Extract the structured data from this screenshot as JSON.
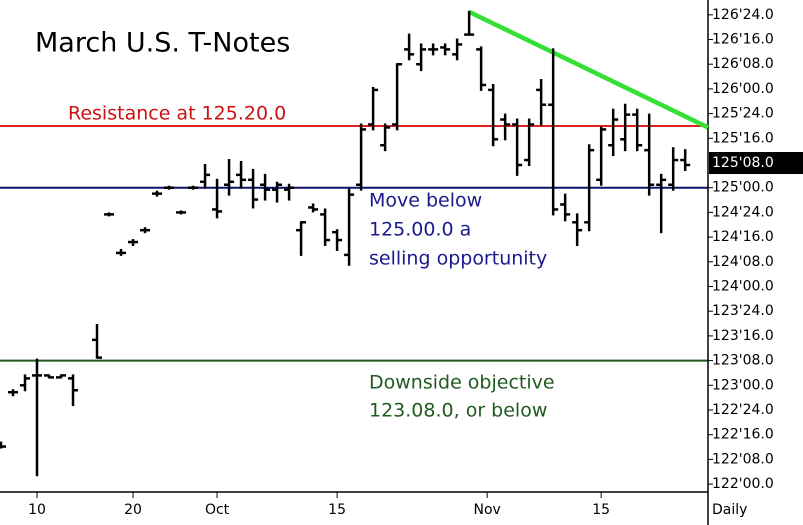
{
  "chart_data": {
    "type": "ohlc",
    "title": "March U.S. T-Notes",
    "period_label": "Daily",
    "color": "#000000",
    "x": [
      0,
      1,
      2,
      3,
      4,
      5,
      6,
      8,
      9,
      10,
      11,
      12,
      13,
      14,
      15,
      16,
      17,
      18,
      19,
      20,
      21,
      22,
      23,
      24,
      25,
      26,
      27,
      28,
      29,
      30,
      31,
      32,
      33,
      34,
      35,
      36,
      37,
      38,
      39,
      40,
      41,
      42,
      43,
      44,
      45,
      46,
      47,
      48,
      49,
      50,
      51,
      52,
      53,
      54,
      55,
      56,
      57
    ],
    "high": [
      122.42,
      122.95,
      123.1,
      123.26,
      123.1,
      123.1,
      123.1,
      123.61,
      124.74,
      124.37,
      124.47,
      124.59,
      124.96,
      125.01,
      124.76,
      125.01,
      125.23,
      125.08,
      125.28,
      125.26,
      125.18,
      125.13,
      125.05,
      125.03,
      124.65,
      124.83,
      124.78,
      124.57,
      124.98,
      125.64,
      126.01,
      125.64,
      126.25,
      126.55,
      126.45,
      126.45,
      126.45,
      126.5,
      126.78,
      126.42,
      126.04,
      125.74,
      125.69,
      125.69,
      126.09,
      126.4,
      124.93,
      124.73,
      125.43,
      125.61,
      125.79,
      125.84,
      125.79,
      125.74,
      125.13,
      125.4,
      125.38
    ],
    "low": [
      122.37,
      122.9,
      122.95,
      122.09,
      123.08,
      123.08,
      122.8,
      123.28,
      124.72,
      124.32,
      124.42,
      124.55,
      124.92,
      124.99,
      124.74,
      124.99,
      125.0,
      124.7,
      124.93,
      125.0,
      124.8,
      124.88,
      124.86,
      124.88,
      124.32,
      124.76,
      124.42,
      124.37,
      124.22,
      124.98,
      125.59,
      125.38,
      125.59,
      126.3,
      126.19,
      126.35,
      126.35,
      126.3,
      126.55,
      125.99,
      125.43,
      125.49,
      125.13,
      125.23,
      125.64,
      124.73,
      124.67,
      124.42,
      124.57,
      125.03,
      125.33,
      125.38,
      125.38,
      124.93,
      124.55,
      124.98,
      125.18
    ],
    "open": [
      122.4,
      122.93,
      123.0,
      123.1,
      123.1,
      123.08,
      123.07,
      123.46,
      124.73,
      124.34,
      124.45,
      124.57,
      124.94,
      125.0,
      124.75,
      125.0,
      125.06,
      124.78,
      125.03,
      125.13,
      125.08,
      125.03,
      124.98,
      124.98,
      124.57,
      124.8,
      124.73,
      124.55,
      124.32,
      125.03,
      125.64,
      125.43,
      125.64,
      126.4,
      126.25,
      126.4,
      126.42,
      126.35,
      126.55,
      126.4,
      125.99,
      125.69,
      125.64,
      125.28,
      125.99,
      125.84,
      124.83,
      124.65,
      124.65,
      125.08,
      125.43,
      125.49,
      125.74,
      125.38,
      125.03,
      125.03,
      125.28
    ],
    "close": [
      122.38,
      122.93,
      123.07,
      123.1,
      123.08,
      123.1,
      122.95,
      123.28,
      124.73,
      124.34,
      124.45,
      124.57,
      124.94,
      125.0,
      124.75,
      125.0,
      125.13,
      124.76,
      125.06,
      125.08,
      124.88,
      124.98,
      125.03,
      125.0,
      124.65,
      124.78,
      124.47,
      124.47,
      124.93,
      125.59,
      125.99,
      125.61,
      126.25,
      126.35,
      126.4,
      126.4,
      126.4,
      126.45,
      126.55,
      126.04,
      125.49,
      125.64,
      125.23,
      125.64,
      125.84,
      124.78,
      124.73,
      124.57,
      125.38,
      125.59,
      125.69,
      125.74,
      125.43,
      125.03,
      125.08,
      125.28,
      125.23
    ],
    "xlim": [
      -0.083,
      58.9
    ],
    "ylim": [
      121.92,
      126.9
    ],
    "xticks": [
      {
        "value": 3,
        "label": "10"
      },
      {
        "value": 11,
        "label": "20"
      },
      {
        "value": 18,
        "label": "Oct"
      },
      {
        "value": 28,
        "label": "15"
      },
      {
        "value": 40.5,
        "label": "Nov"
      },
      {
        "value": 50,
        "label": "15"
      }
    ],
    "yticks": [
      {
        "value": 126.75,
        "label": "126'24.0"
      },
      {
        "value": 126.5,
        "label": "126'16.0"
      },
      {
        "value": 126.25,
        "label": "126'08.0"
      },
      {
        "value": 126,
        "label": "126'00.0"
      },
      {
        "value": 125.75,
        "label": "125'24.0"
      },
      {
        "value": 125.5,
        "label": "125'16.0"
      },
      {
        "value": 125,
        "label": "125'00.0"
      },
      {
        "value": 124.75,
        "label": "124'24.0"
      },
      {
        "value": 124.5,
        "label": "124'16.0"
      },
      {
        "value": 124.25,
        "label": "124'08.0"
      },
      {
        "value": 124,
        "label": "124'00.0"
      },
      {
        "value": 123.75,
        "label": "123'24.0"
      },
      {
        "value": 123.5,
        "label": "123'16.0"
      },
      {
        "value": 123.25,
        "label": "123'08.0"
      },
      {
        "value": 123,
        "label": "123'00.0"
      },
      {
        "value": 122.75,
        "label": "122'24.0"
      },
      {
        "value": 122.5,
        "label": "122'16.0"
      },
      {
        "value": 122.25,
        "label": "122'08.0"
      },
      {
        "value": 122,
        "label": "122'00.0"
      }
    ],
    "last_price": {
      "value": 125.25,
      "label": "125'08.0"
    },
    "hlines": [
      {
        "value": 125.625,
        "color": "#e02020"
      },
      {
        "value": 125.0,
        "color": "#10106e"
      },
      {
        "value": 123.25,
        "color": "#1f5a1f"
      }
    ],
    "trendline": {
      "x": [
        39,
        58.9
      ],
      "y": [
        126.78,
        125.61
      ],
      "color": "#33e033"
    },
    "annotations": [
      {
        "lines": [
          "Resistance at 125.20.0"
        ],
        "color": "#cc1111"
      },
      {
        "lines": [
          "Move below",
          "125.00.0 a",
          "selling opportunity"
        ],
        "color": "#1a1a8c"
      },
      {
        "lines": [
          "Downside objective",
          "123.08.0, or below"
        ],
        "color": "#1f5a1f"
      }
    ]
  }
}
